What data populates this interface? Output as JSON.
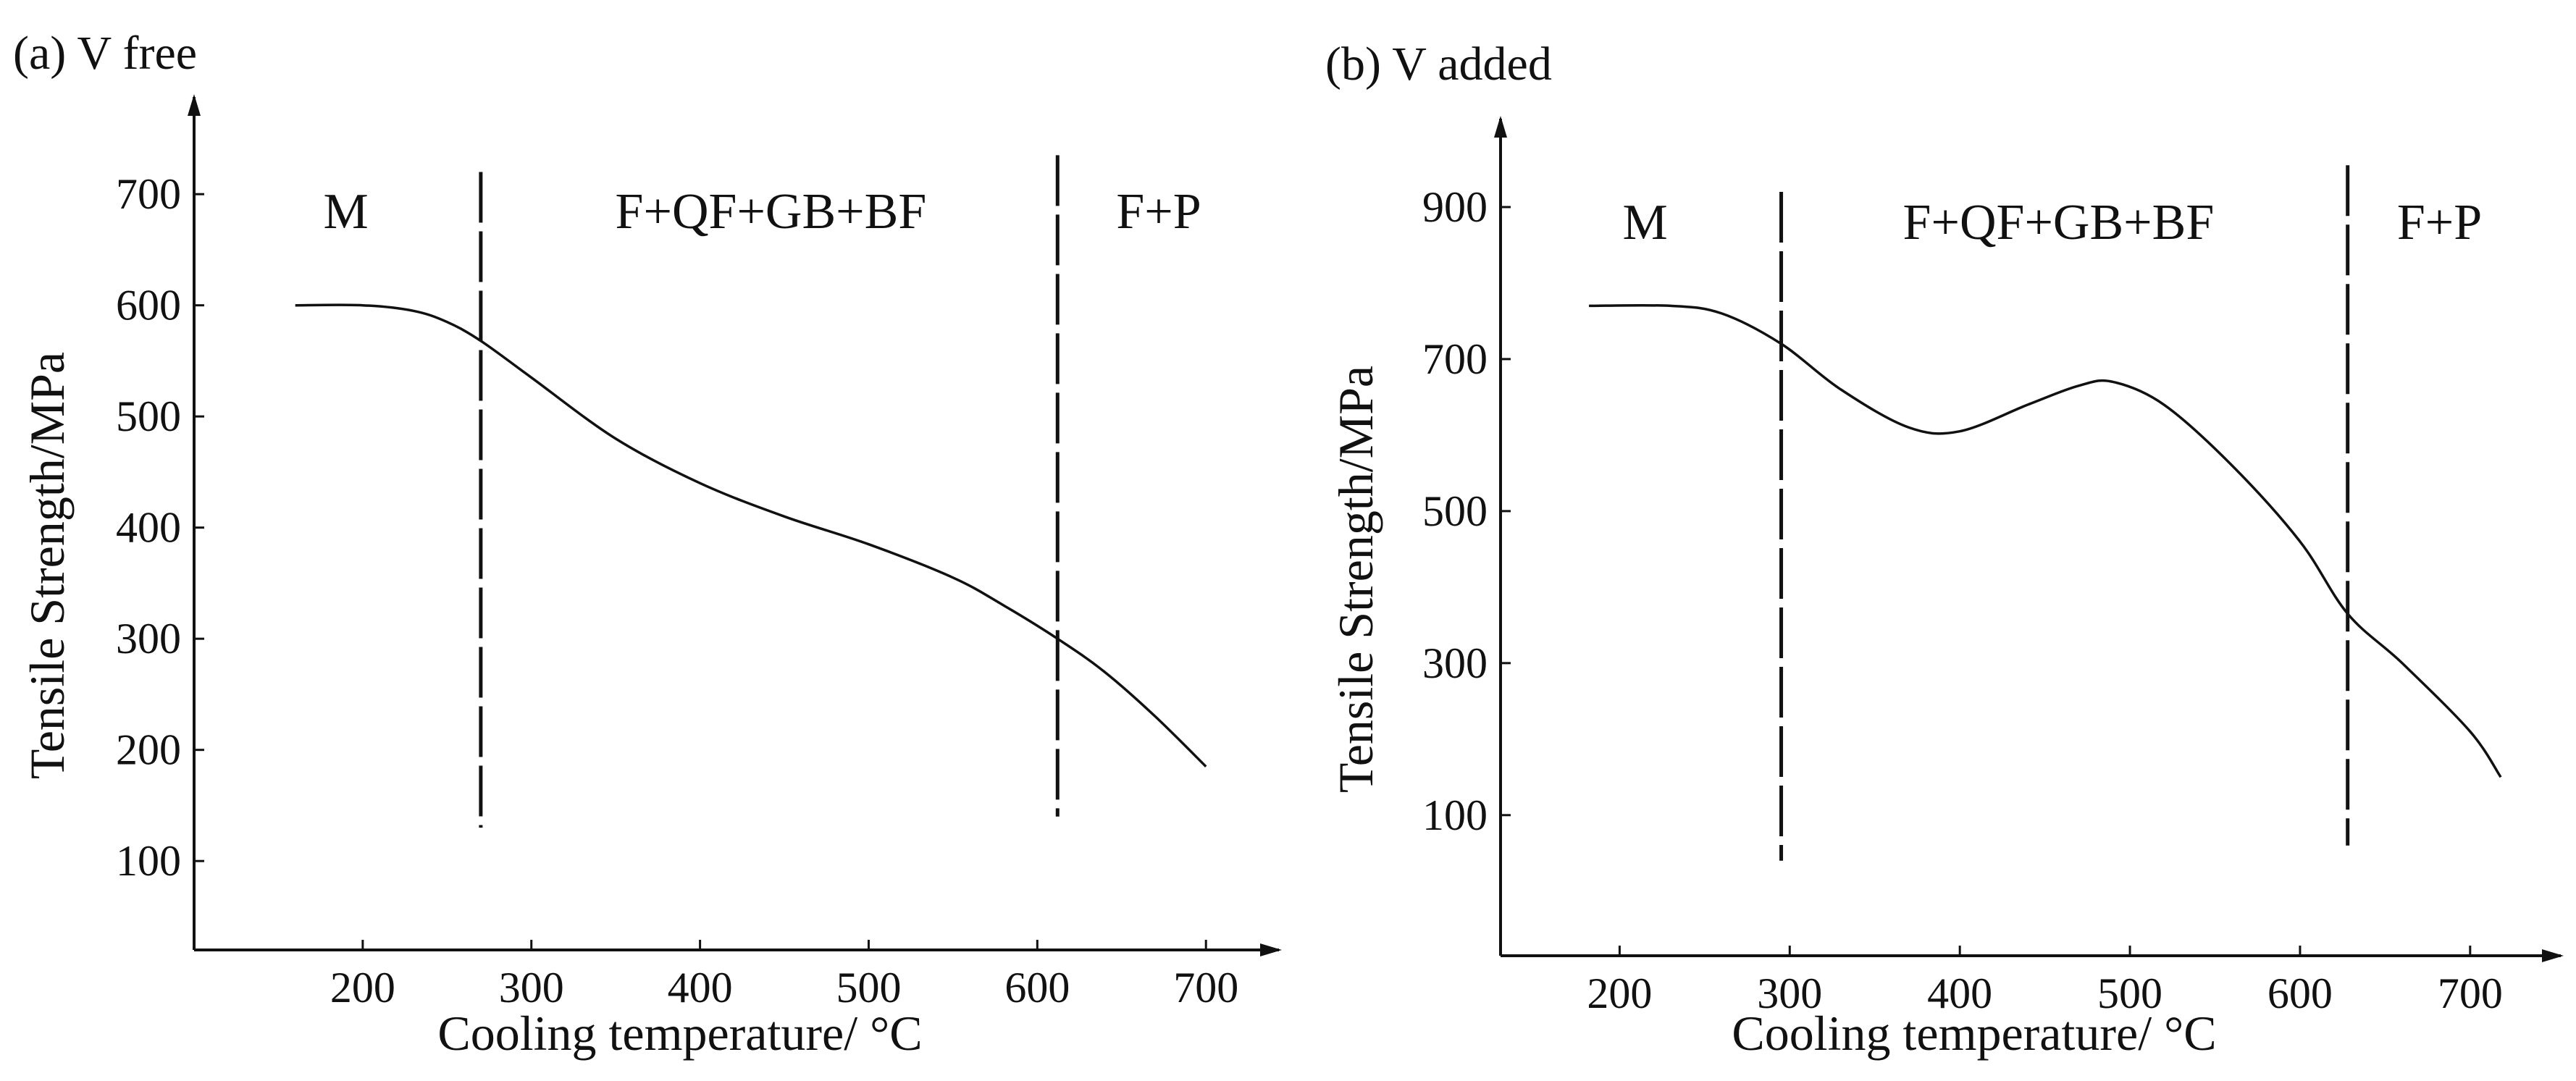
{
  "chart_data": [
    {
      "type": "line",
      "title": "(a)  V free",
      "xlabel": "Cooling temperature/ °C",
      "ylabel": "Tensile Strength/MPa",
      "x_ticks": [
        200,
        300,
        400,
        500,
        600,
        700
      ],
      "y_ticks": [
        100,
        200,
        300,
        400,
        500,
        600,
        700
      ],
      "xlim": [
        100,
        745
      ],
      "ylim": [
        20,
        790
      ],
      "grid": false,
      "regions": [
        {
          "label": "M",
          "x_center": 190
        },
        {
          "label": "F+QF+GB+BF",
          "x_center": 442
        },
        {
          "label": "F+P",
          "x_center": 672
        }
      ],
      "boundaries": [
        {
          "x": 270,
          "y_range": [
            130,
            720
          ]
        },
        {
          "x": 612,
          "y_range": [
            140,
            735
          ]
        }
      ],
      "series": [
        {
          "x": [
            160,
            200,
            230,
            250,
            270,
            300,
            350,
            400,
            450,
            500,
            550,
            580,
            612,
            640,
            670,
            700
          ],
          "values": [
            600,
            600,
            595,
            585,
            568,
            535,
            480,
            440,
            410,
            385,
            355,
            330,
            300,
            270,
            230,
            185
          ]
        }
      ]
    },
    {
      "type": "line",
      "title": "(b)  V added",
      "xlabel": "Cooling temperature/ °C",
      "ylabel": "Tensile Strength/MPa",
      "x_ticks": [
        200,
        300,
        400,
        500,
        600,
        700
      ],
      "y_ticks": [
        100,
        300,
        500,
        700,
        900
      ],
      "xlim": [
        130,
        755
      ],
      "ylim": [
        -85,
        1020
      ],
      "grid": false,
      "regions": [
        {
          "label": "M",
          "x_center": 215
        },
        {
          "label": "F+QF+GB+BF",
          "x_center": 458
        },
        {
          "label": "F+P",
          "x_center": 682
        }
      ],
      "boundaries": [
        {
          "x": 295,
          "y_range": [
            40,
            920
          ]
        },
        {
          "x": 628,
          "y_range": [
            60,
            955
          ]
        }
      ],
      "series": [
        {
          "x": [
            182,
            230,
            260,
            295,
            330,
            370,
            400,
            440,
            470,
            490,
            520,
            560,
            600,
            628,
            660,
            700,
            718
          ],
          "values": [
            770,
            770,
            760,
            720,
            660,
            610,
            605,
            640,
            665,
            670,
            640,
            560,
            460,
            365,
            300,
            210,
            150
          ]
        }
      ]
    }
  ]
}
